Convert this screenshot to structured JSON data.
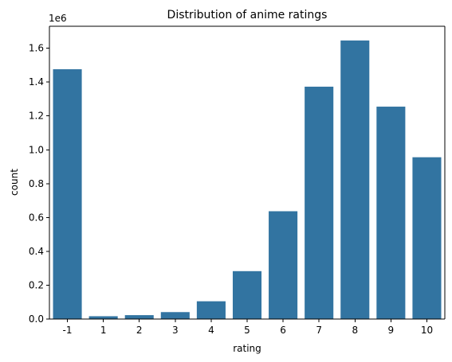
{
  "chart_data": {
    "type": "bar",
    "title": "Distribution of anime ratings",
    "xlabel": "rating",
    "ylabel": "count",
    "y_offset_label": "1e6",
    "categories": [
      "-1",
      "1",
      "2",
      "3",
      "4",
      "5",
      "6",
      "7",
      "8",
      "9",
      "10"
    ],
    "values": [
      1476000,
      16600,
      23000,
      41000,
      105000,
      283000,
      637000,
      1373000,
      1646000,
      1255000,
      956000
    ],
    "ylim": [
      0,
      1730000
    ],
    "yticks": [
      0,
      200000,
      400000,
      600000,
      800000,
      1000000,
      1200000,
      1400000,
      1600000
    ],
    "ytick_labels": [
      "0.0",
      "0.2",
      "0.4",
      "0.6",
      "0.8",
      "1.0",
      "1.2",
      "1.4",
      "1.6"
    ],
    "bar_color": "#3274a1",
    "grid": false
  }
}
